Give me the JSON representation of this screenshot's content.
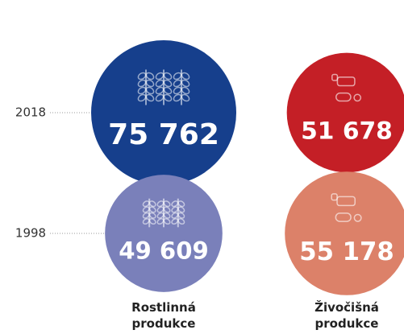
{
  "chart_data": {
    "type": "bubble",
    "categories": [
      "Rostlinná produkce",
      "Živočišná produkce"
    ],
    "series": [
      {
        "name": "2018",
        "colors": [
          "#163f8c",
          "#c41f26"
        ],
        "values": [
          75762,
          51678
        ],
        "value_labels": [
          "75 762",
          "51 678"
        ]
      },
      {
        "name": "1998",
        "colors": [
          "#7a80ba",
          "#dc8169"
        ],
        "values": [
          49609,
          55178
        ],
        "value_labels": [
          "49 609",
          "55 178"
        ]
      }
    ]
  }
}
